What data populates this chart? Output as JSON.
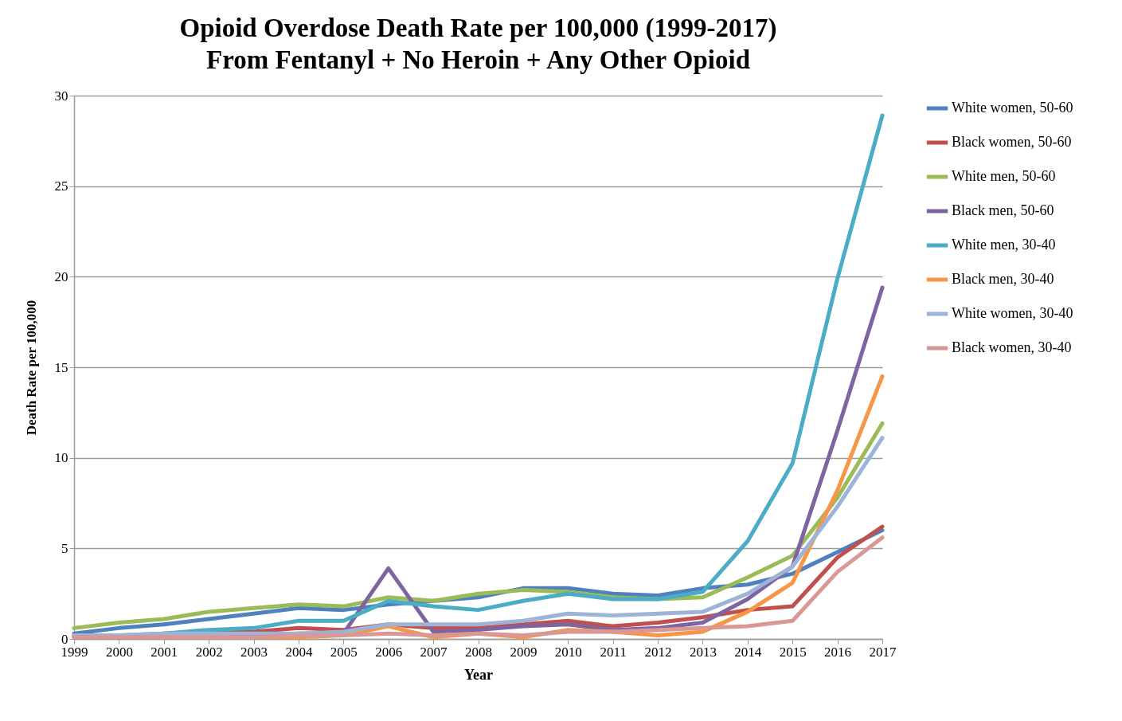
{
  "chart_data": {
    "type": "line",
    "title": [
      "Opioid Overdose Death Rate per 100,000 (1999-2017)",
      "From Fentanyl + No Heroin + Any Other Opioid"
    ],
    "xlabel": "Year",
    "ylabel": "Death Rate per 100,000",
    "categories": [
      "1999",
      "2000",
      "2001",
      "2002",
      "2003",
      "2004",
      "2005",
      "2006",
      "2007",
      "2008",
      "2009",
      "2010",
      "2011",
      "2012",
      "2013",
      "2014",
      "2015",
      "2016",
      "2017"
    ],
    "ylim": [
      0,
      30
    ],
    "yticks": [
      0,
      5,
      10,
      15,
      20,
      25,
      30
    ],
    "grid": "y",
    "legend": "right",
    "marker": "none",
    "line_style": "solid",
    "series": [
      {
        "name": "White women, 50-60",
        "color": "#4f81bd",
        "values": [
          0.3,
          0.6,
          0.8,
          1.1,
          1.4,
          1.7,
          1.6,
          1.9,
          2.1,
          2.3,
          2.8,
          2.8,
          2.5,
          2.4,
          2.8,
          3.0,
          3.6,
          4.8,
          6.0
        ]
      },
      {
        "name": "Black women, 50-60",
        "color": "#c0504d",
        "values": [
          0.1,
          0.1,
          0.3,
          0.4,
          0.4,
          0.6,
          0.5,
          0.8,
          0.6,
          0.6,
          0.8,
          1.0,
          0.7,
          0.9,
          1.2,
          1.6,
          1.8,
          4.5,
          6.2
        ]
      },
      {
        "name": "White men, 50-60",
        "color": "#9bbb59",
        "values": [
          0.6,
          0.9,
          1.1,
          1.5,
          1.7,
          1.9,
          1.8,
          2.3,
          2.1,
          2.5,
          2.7,
          2.6,
          2.3,
          2.2,
          2.3,
          3.4,
          4.6,
          7.8,
          11.9
        ]
      },
      {
        "name": "Black men, 50-60",
        "color": "#8064a2",
        "values": [
          0.2,
          0.1,
          0.1,
          0.2,
          0.2,
          0.3,
          0.3,
          3.9,
          0.4,
          0.5,
          0.7,
          0.8,
          0.5,
          0.6,
          0.9,
          2.2,
          4.0,
          11.5,
          19.4
        ]
      },
      {
        "name": "White men, 30-40",
        "color": "#4bacc6",
        "values": [
          0.2,
          0.2,
          0.3,
          0.5,
          0.6,
          1.0,
          1.0,
          2.1,
          1.8,
          1.6,
          2.1,
          2.5,
          2.2,
          2.2,
          2.6,
          5.4,
          9.7,
          19.9,
          28.9
        ]
      },
      {
        "name": "Black men, 30-40",
        "color": "#f79646",
        "values": [
          0.1,
          0.1,
          0.1,
          0.1,
          0.1,
          0.1,
          0.2,
          0.7,
          0.1,
          0.3,
          0.1,
          0.5,
          0.4,
          0.2,
          0.4,
          1.5,
          3.1,
          8.2,
          14.5
        ]
      },
      {
        "name": "White women, 30-40",
        "color": "#9eb3d8",
        "values": [
          0.2,
          0.2,
          0.3,
          0.3,
          0.3,
          0.3,
          0.4,
          0.8,
          0.8,
          0.8,
          1.0,
          1.4,
          1.3,
          1.4,
          1.5,
          2.5,
          4.0,
          7.3,
          11.1
        ]
      },
      {
        "name": "Black women, 30-40",
        "color": "#d99795",
        "values": [
          0.1,
          0.1,
          0.1,
          0.1,
          0.1,
          0.2,
          0.2,
          0.3,
          0.2,
          0.3,
          0.2,
          0.4,
          0.4,
          0.5,
          0.6,
          0.7,
          1.0,
          3.7,
          5.6
        ]
      }
    ]
  }
}
